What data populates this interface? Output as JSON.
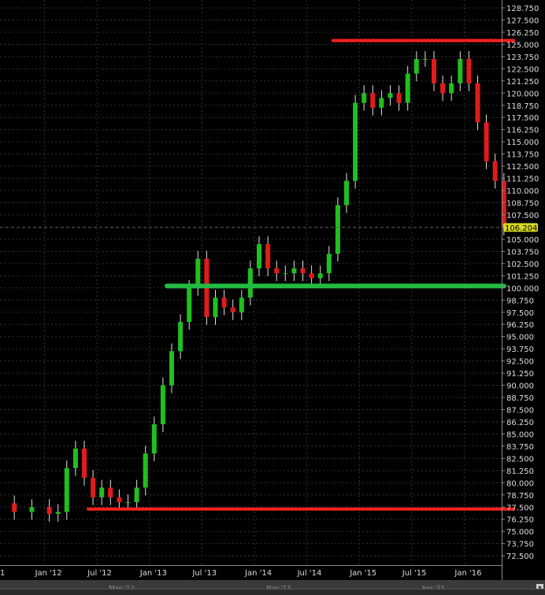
{
  "chart_data": {
    "type": "candlestick",
    "title": "",
    "xlabel": "",
    "ylabel": "",
    "ylim": [
      71.875,
      129.375
    ],
    "y_ticks": [
      "128.750",
      "127.500",
      "126.250",
      "125.000",
      "123.750",
      "122.500",
      "121.250",
      "120.000",
      "118.750",
      "117.500",
      "116.250",
      "115.000",
      "113.750",
      "112.500",
      "111.250",
      "110.000",
      "108.750",
      "107.500",
      "105.000",
      "103.750",
      "102.500",
      "101.250",
      "100.000",
      "98.750",
      "97.500",
      "96.250",
      "95.000",
      "93.750",
      "92.500",
      "91.250",
      "90.000",
      "88.750",
      "87.500",
      "86.250",
      "85.000",
      "83.750",
      "82.500",
      "81.250",
      "80.000",
      "78.750",
      "77.500",
      "76.250",
      "75.000",
      "73.750",
      "72.500"
    ],
    "x_ticks": [
      {
        "label": "1",
        "date": "2011-07"
      },
      {
        "label": "Jan '12",
        "date": "2012-01"
      },
      {
        "label": "Jul '12",
        "date": "2012-07"
      },
      {
        "label": "Jan '13",
        "date": "2013-01"
      },
      {
        "label": "Jul '13",
        "date": "2013-07"
      },
      {
        "label": "Jan '14",
        "date": "2014-01"
      },
      {
        "label": "Jul '14",
        "date": "2014-07"
      },
      {
        "label": "Jan '15",
        "date": "2015-01"
      },
      {
        "label": "Jul '15",
        "date": "2015-07"
      },
      {
        "label": "Jan '16",
        "date": "2016-01"
      }
    ],
    "grid": true,
    "last_price": "106.204",
    "colors": {
      "up": "#1fbf1f",
      "down": "#e01b1b",
      "wick": "#e0e0e0",
      "last_price_bg": "#d8d820",
      "background": "#000000"
    },
    "series": [
      {
        "values": [
          [
            "2011-07",
            77.9
          ],
          [
            "2011-09",
            77.0
          ],
          [
            "2011-11",
            77.5
          ],
          [
            "2012-01",
            76.8
          ],
          [
            "2012-02",
            77.0
          ],
          [
            "2012-03",
            81.5
          ],
          [
            "2012-04",
            83.5
          ],
          [
            "2012-05",
            80.5
          ],
          [
            "2012-06",
            78.5
          ],
          [
            "2012-07",
            79.5
          ],
          [
            "2012-08",
            78.5
          ],
          [
            "2012-09",
            78.0
          ],
          [
            "2012-10",
            78.0
          ],
          [
            "2012-11",
            79.5
          ],
          [
            "2012-12",
            83.0
          ],
          [
            "2013-01",
            86.0
          ],
          [
            "2013-02",
            90.0
          ],
          [
            "2013-03",
            93.5
          ],
          [
            "2013-04",
            96.5
          ],
          [
            "2013-05",
            100.0
          ],
          [
            "2013-06",
            103.0
          ],
          [
            "2013-07",
            97.0
          ],
          [
            "2013-08",
            99.0
          ],
          [
            "2013-09",
            98.0
          ],
          [
            "2013-10",
            97.5
          ],
          [
            "2013-11",
            99.0
          ],
          [
            "2013-12",
            102.0
          ],
          [
            "2014-01",
            104.5
          ],
          [
            "2014-02",
            102.0
          ],
          [
            "2014-03",
            101.5
          ],
          [
            "2014-04",
            101.5
          ],
          [
            "2014-05",
            102.0
          ],
          [
            "2014-06",
            101.5
          ],
          [
            "2014-07",
            101.0
          ],
          [
            "2014-08",
            101.5
          ],
          [
            "2014-09",
            103.5
          ],
          [
            "2014-10",
            108.5
          ],
          [
            "2014-11",
            111.0
          ],
          [
            "2014-12",
            119.0
          ],
          [
            "2015-01",
            120.0
          ],
          [
            "2015-02",
            118.5
          ],
          [
            "2015-03",
            119.5
          ],
          [
            "2015-04",
            120.0
          ],
          [
            "2015-05",
            119.0
          ],
          [
            "2015-06",
            122.0
          ],
          [
            "2015-07",
            123.5
          ],
          [
            "2015-08",
            123.5
          ],
          [
            "2015-09",
            121.0
          ],
          [
            "2015-10",
            120.0
          ],
          [
            "2015-11",
            121.0
          ],
          [
            "2015-12",
            123.5
          ],
          [
            "2016-01",
            121.0
          ],
          [
            "2016-02",
            117.0
          ],
          [
            "2016-03",
            113.0
          ],
          [
            "2016-04",
            111.0
          ],
          [
            "2016-05",
            106.2
          ]
        ]
      }
    ],
    "annotations": [
      {
        "type": "hline",
        "level": 125.4,
        "from": "2014-10",
        "color": "#ff2020"
      },
      {
        "type": "hline",
        "level": 100.2,
        "from": "2013-03",
        "color": "#22bb44"
      },
      {
        "type": "hline",
        "level": 77.3,
        "from": "2012-06",
        "color": "#ff2020"
      }
    ]
  },
  "navigator": {
    "labels": [
      "May '12",
      "Nov '13",
      "Apr '15"
    ]
  }
}
